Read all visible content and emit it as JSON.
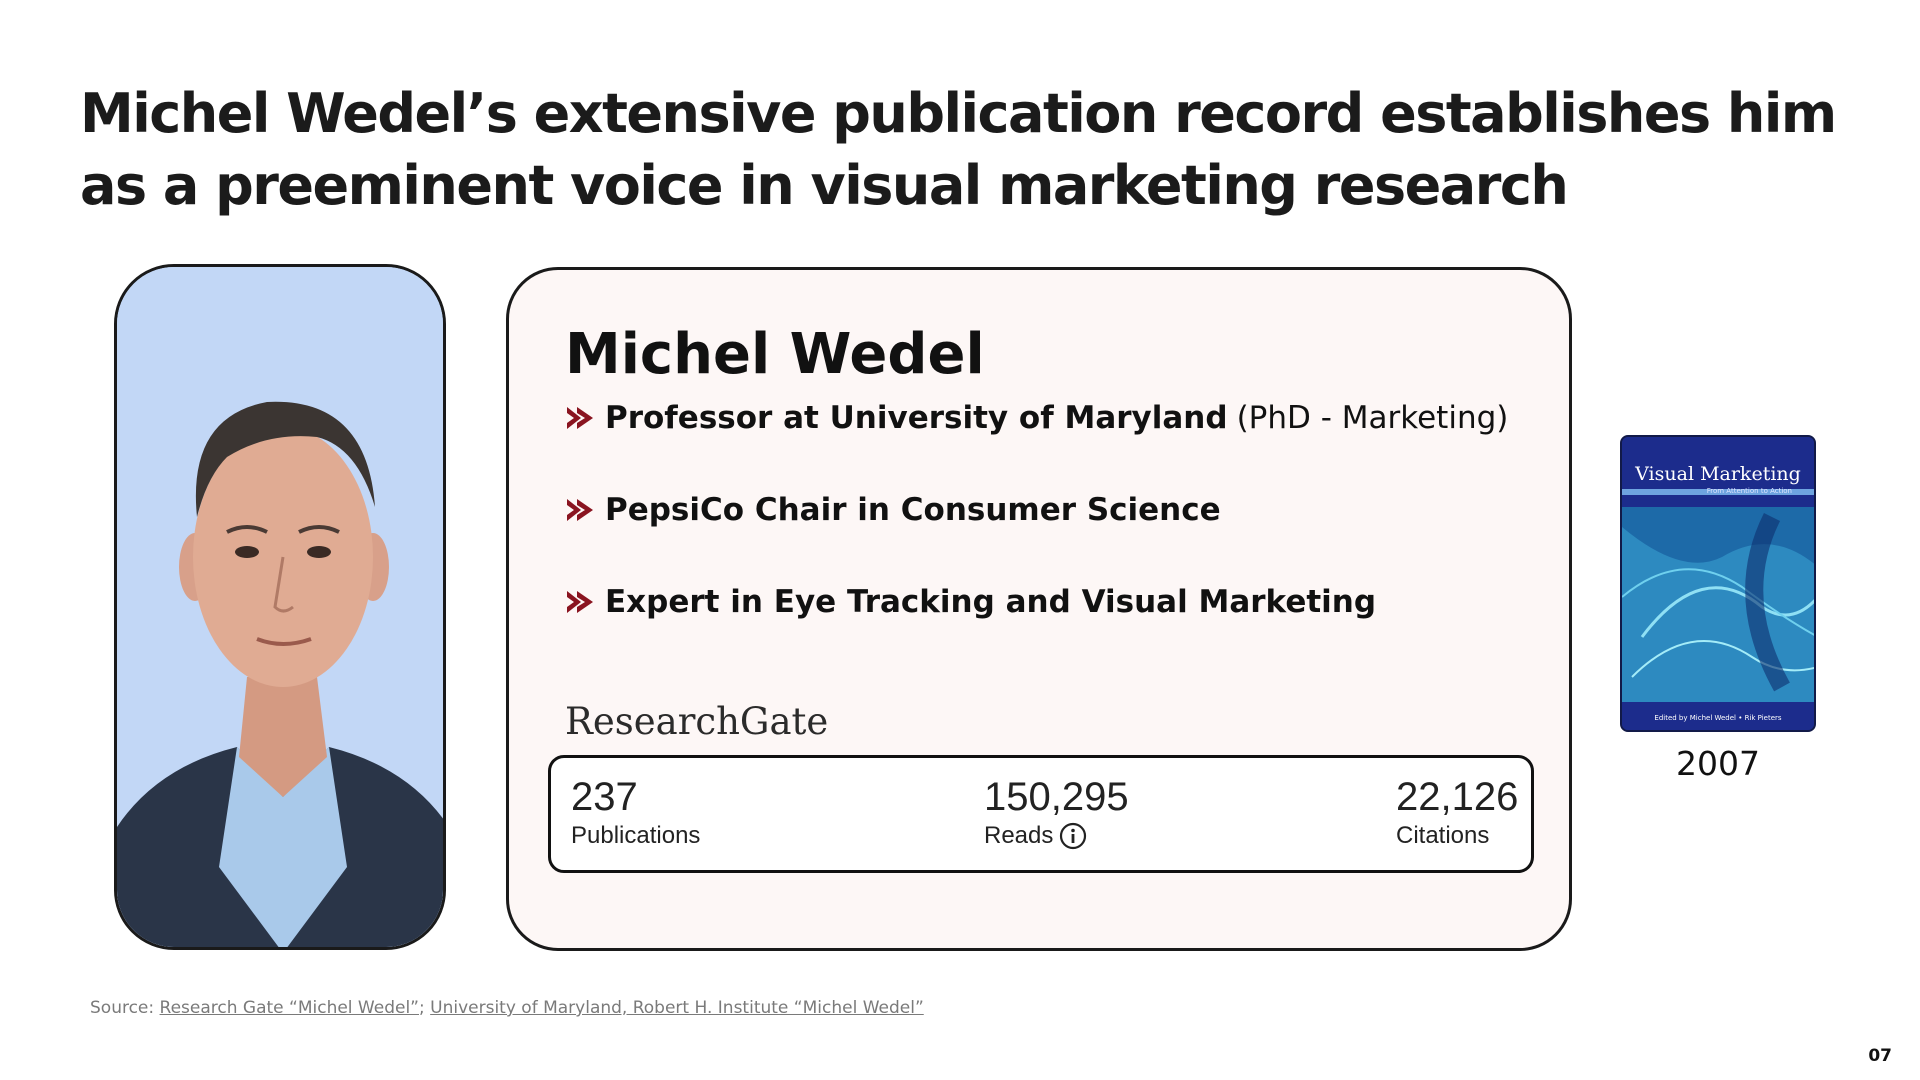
{
  "slide": {
    "title": "Michel Wedel’s extensive publication record establishes him as a preeminent voice in visual marketing research",
    "page_number": "07"
  },
  "profile": {
    "name": "Michel Wedel",
    "bullets": [
      {
        "strong": "Professor at University of Maryland",
        "light": "(PhD - Marketing)"
      },
      {
        "strong": "PepsiCo Chair in Consumer Science",
        "light": ""
      },
      {
        "strong": "Expert in Eye Tracking and Visual Marketing",
        "light": ""
      }
    ],
    "researchgate_label": "ResearchGate",
    "stats": [
      {
        "value": "237",
        "label": "Publications"
      },
      {
        "value": "150,295",
        "label": "Reads"
      },
      {
        "value": "22,126",
        "label": "Citations"
      }
    ]
  },
  "book": {
    "title": "Visual Marketing",
    "subtitle": "From Attention to Action",
    "editors": "Edited by  Michel Wedel  •  Rik Pieters",
    "year": "2007"
  },
  "source": {
    "prefix": "Source:",
    "link1": "Research Gate “Michel Wedel”",
    "sep": ";",
    "link2": "University of Maryland,  Robert H. Institute “Michel Wedel”"
  },
  "colors": {
    "accent_red": "#8a1420",
    "photo_bg": "#c2d7f6",
    "card_bg": "#fdf7f6",
    "book_blue": "#1c2c8c"
  }
}
